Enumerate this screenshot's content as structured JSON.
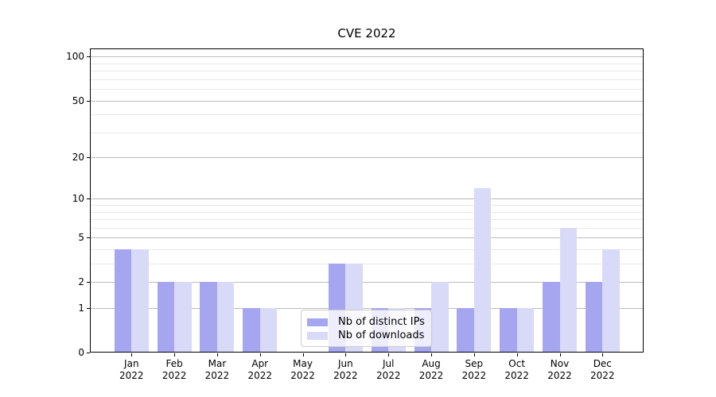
{
  "title": "CVE 2022",
  "legend": {
    "items": [
      {
        "label": "Nb of distinct IPs",
        "color": "#a6a6f0"
      },
      {
        "label": "Nb of downloads",
        "color": "#d9d9f8"
      }
    ]
  },
  "axes": {
    "y_tick_labels": [
      "0",
      "1",
      "2",
      "5",
      "10",
      "20",
      "50",
      "100"
    ],
    "x_tick_labels": [
      "Jan 2022",
      "Feb 2022",
      "Mar 2022",
      "Apr 2022",
      "May 2022",
      "Jun 2022",
      "Jul 2022",
      "Aug 2022",
      "Sep 2022",
      "Oct 2022",
      "Nov 2022",
      "Dec 2022"
    ]
  },
  "colors": {
    "series_distinct_ips": "#a6a6f0",
    "series_downloads": "#d9d9f8",
    "grid_major": "#bbbbbb",
    "grid_minor": "#e9e9e9",
    "axis": "#000000",
    "background": "#ffffff"
  },
  "chart_data": {
    "type": "bar",
    "title": "CVE 2022",
    "categories": [
      "Jan 2022",
      "Feb 2022",
      "Mar 2022",
      "Apr 2022",
      "May 2022",
      "Jun 2022",
      "Jul 2022",
      "Aug 2022",
      "Sep 2022",
      "Oct 2022",
      "Nov 2022",
      "Dec 2022"
    ],
    "series": [
      {
        "name": "Nb of distinct IPs",
        "color": "#a6a6f0",
        "values": [
          4,
          2,
          2,
          1,
          0,
          3,
          1,
          1,
          1,
          1,
          2,
          2
        ]
      },
      {
        "name": "Nb of downloads",
        "color": "#d9d9f8",
        "values": [
          4,
          2,
          2,
          1,
          0,
          3,
          1,
          2,
          12,
          1,
          6,
          4
        ]
      }
    ],
    "xlabel": "",
    "ylabel": "",
    "y_scale": "log1p",
    "y_major_ticks": [
      0,
      1,
      2,
      5,
      10,
      20,
      50,
      100
    ],
    "y_minor_ticks": [
      3,
      4,
      6,
      7,
      8,
      9,
      30,
      40,
      60,
      70,
      80,
      90
    ],
    "ylim": [
      0,
      114
    ],
    "grid": "horizontal-major-and-minor",
    "legend_position": "inside-bottom-center"
  }
}
